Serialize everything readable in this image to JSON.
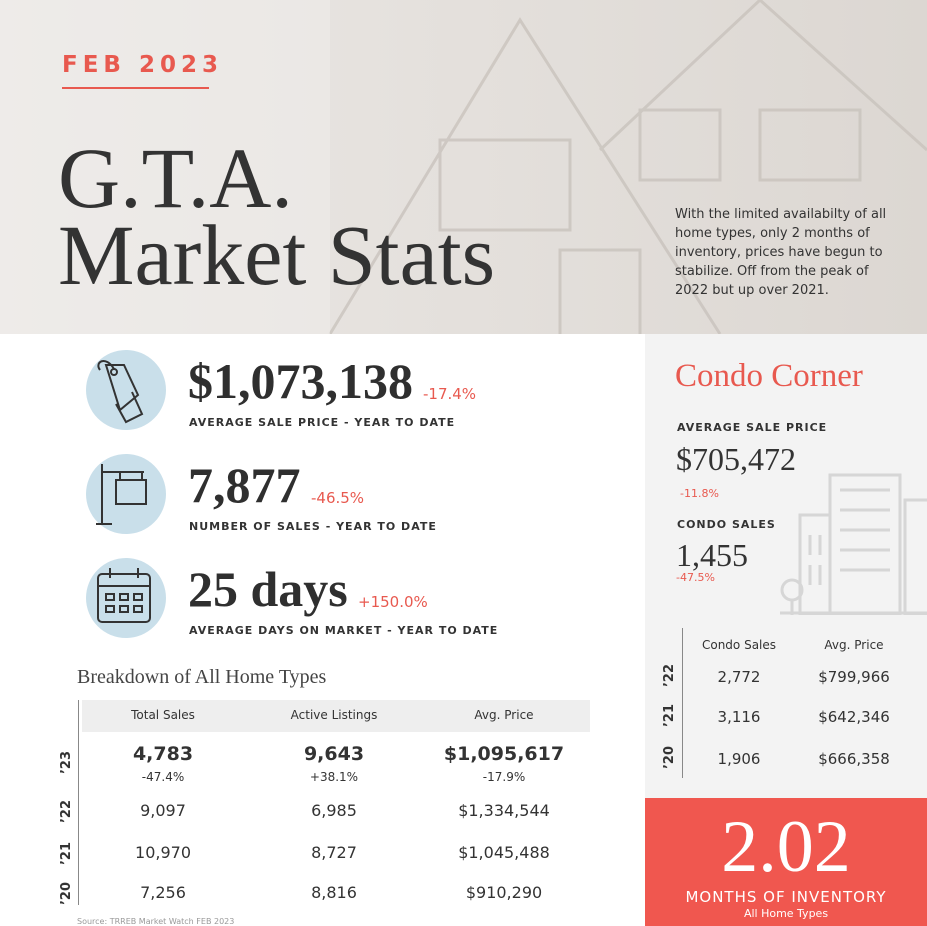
{
  "header": {
    "date": "FEB 2023",
    "title_line1": "G.T.A.",
    "title_line2": "Market Stats",
    "blurb": "With the limited availabilty of all home types, only 2 months of inventory, prices have begun to stabilize.  Off from the peak of 2022 but up over 2021."
  },
  "stats": [
    {
      "value": "$1,073,138",
      "change": "-17.4%",
      "label": "AVERAGE SALE PRICE - YEAR TO DATE"
    },
    {
      "value": "7,877",
      "change": "-46.5%",
      "label": "NUMBER OF SALES - YEAR TO DATE"
    },
    {
      "value": "25 days",
      "change": "+150.0%",
      "label": "AVERAGE DAYS ON MARKET - YEAR TO DATE"
    }
  ],
  "breakdown": {
    "title": "Breakdown of All Home Types",
    "columns": [
      "Total Sales",
      "Active Listings",
      "Avg. Price"
    ],
    "rows": [
      {
        "year": "’23",
        "cells": [
          "4,783",
          "9,643",
          "$1,095,617"
        ],
        "changes": [
          "-47.4%",
          "+38.1%",
          "-17.9%"
        ]
      },
      {
        "year": "’22",
        "cells": [
          "9,097",
          "6,985",
          "$1,334,544"
        ]
      },
      {
        "year": "’21",
        "cells": [
          "10,970",
          "8,727",
          "$1,045,488"
        ]
      },
      {
        "year": "’20",
        "cells": [
          "7,256",
          "8,816",
          "$910,290"
        ]
      }
    ]
  },
  "source": "Source: TRREB Market Watch FEB 2023",
  "condo": {
    "title": "Condo Corner",
    "price_label": "AVERAGE SALE PRICE",
    "price": "$705,472",
    "price_change": "-11.8%",
    "sales_label": "CONDO SALES",
    "sales": "1,455",
    "sales_change": "-47.5%",
    "columns": [
      "Condo Sales",
      "Avg. Price"
    ],
    "rows": [
      {
        "year": "’22",
        "cells": [
          "2,772",
          "$799,966"
        ]
      },
      {
        "year": "’21",
        "cells": [
          "3,116",
          "$642,346"
        ]
      },
      {
        "year": "’20",
        "cells": [
          "1,906",
          "$666,358"
        ]
      }
    ]
  },
  "inventory": {
    "value": "2.02",
    "label": "MONTHS OF INVENTORY",
    "sublabel": "All Home Types"
  }
}
